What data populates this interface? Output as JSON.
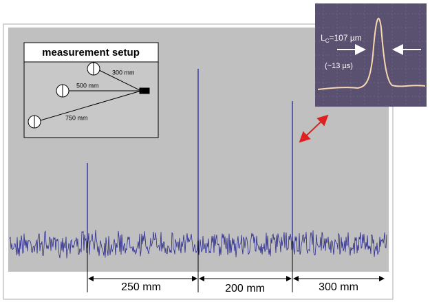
{
  "setup": {
    "title": "measurement setup",
    "distances": [
      "300 mm",
      "500 mm",
      "750 mm"
    ]
  },
  "zoom": {
    "length_main": "L",
    "length_sub": "C",
    "length_rest": "=107 µm",
    "time": "(~13 µs)"
  },
  "spans": [
    "250 mm",
    "200 mm",
    "300 mm"
  ]
}
